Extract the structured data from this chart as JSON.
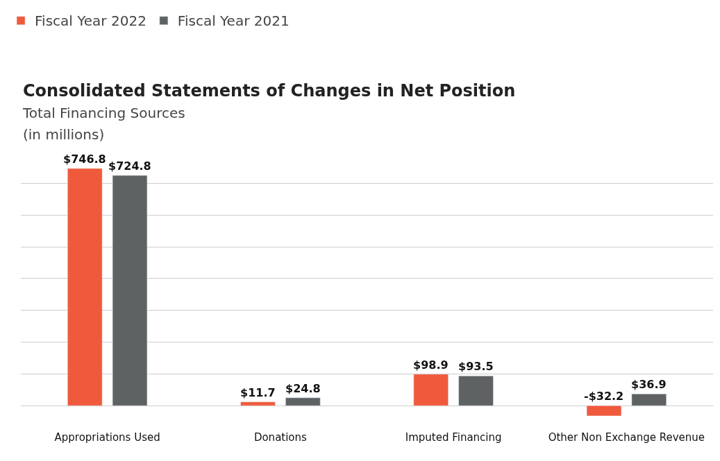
{
  "chart_data": {
    "type": "bar",
    "title": "Consolidated Statements of Changes in Net Position",
    "subtitle": "Total Financing Sources\n(in millions)",
    "categories": [
      "Appropriations Used",
      "Donations",
      "Imputed Financing",
      "Other Non Exchange Revenue"
    ],
    "series": [
      {
        "name": "Fiscal Year 2022",
        "color": "#f05a3c",
        "values": [
          746.8,
          11.7,
          98.9,
          -32.2
        ],
        "value_labels": [
          "$746.8",
          "$11.7",
          "$98.9",
          "-$32.2"
        ]
      },
      {
        "name": "Fiscal Year 2021",
        "color": "#5f6263",
        "values": [
          724.8,
          24.8,
          93.5,
          36.9
        ],
        "value_labels": [
          "$724.8",
          "$24.8",
          "$93.5",
          "$36.9"
        ]
      }
    ],
    "grid": "y",
    "legend": "top left",
    "tick_labels": "x"
  }
}
